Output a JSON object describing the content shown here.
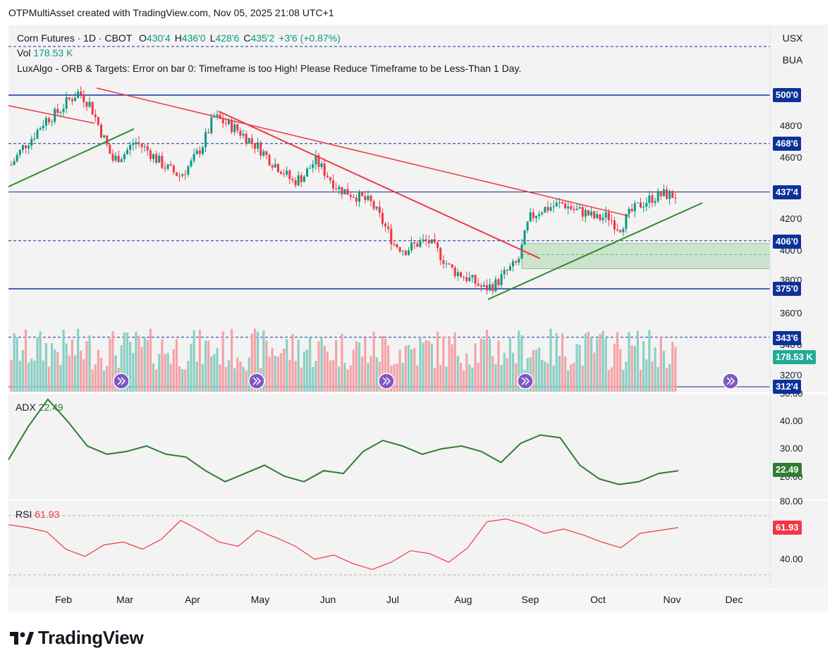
{
  "caption": "OTPMultiAsset created with TradingView.com, Nov 05, 2025 21:08 UTC+1",
  "brand": "TradingView",
  "legend": {
    "symbol": "Corn Futures · 1D · CBOT",
    "ohlc": [
      {
        "k": "O",
        "v": "430'4"
      },
      {
        "k": "H",
        "v": "436'0"
      },
      {
        "k": "L",
        "v": "428'6"
      },
      {
        "k": "C",
        "v": "435'2"
      },
      {
        "k": "",
        "v": "+3'6 (+0.87%)"
      }
    ],
    "vol_label": "Vol",
    "vol_value": "178.53 K",
    "indicator_msg": "LuxAlgo - ORB & Targets: Error on bar 0: Timeframe is too High! Please Reduce Timeframe to be Less-Than 1 Day."
  },
  "side_buttons": [
    "USX",
    "BUA"
  ],
  "price_axis": {
    "labels": [
      "480'0",
      "460'0",
      "420'0",
      "400'0",
      "380'0",
      "360'0",
      "340'0",
      "320'0"
    ],
    "pills": [
      {
        "text": "500'0",
        "color": "#0c3299"
      },
      {
        "text": "468'6",
        "color": "#0c3299"
      },
      {
        "text": "437'4",
        "color": "#0c3299"
      },
      {
        "text": "406'0",
        "color": "#0c3299"
      },
      {
        "text": "375'0",
        "color": "#0c3299"
      },
      {
        "text": "343'6",
        "color": "#0c3299"
      },
      {
        "text": "178.53 K",
        "color": "#22ab94"
      },
      {
        "text": "312'4",
        "color": "#0c3299"
      }
    ]
  },
  "adx": {
    "label": "ADX",
    "value": "22.49",
    "axis": [
      "50.00",
      "40.00",
      "30.00",
      "20.00"
    ],
    "color": "#2e7d32"
  },
  "rsi": {
    "label": "RSI",
    "value": "61.93",
    "axis": [
      "80.00",
      "40.00"
    ],
    "color": "#f23645"
  },
  "x_axis": [
    "Feb",
    "Mar",
    "Apr",
    "May",
    "Jun",
    "Jul",
    "Aug",
    "Sep",
    "Oct",
    "Nov",
    "Dec"
  ],
  "colors": {
    "up": "#089981",
    "down": "#f23645",
    "trend_red": "#f23645",
    "trend_green": "#2e8b2e",
    "level": "#0c3299"
  },
  "chart_data": {
    "type": "candlestick",
    "title": "Corn Futures · 1D · CBOT",
    "ylim": [
      305,
      515
    ],
    "levels": {
      "solid": [
        500,
        437.5,
        375
      ],
      "dashed": [
        468.75,
        406,
        343.75
      ]
    },
    "zone": [
      388,
      406
    ],
    "weekly_closes": [
      455,
      466,
      474,
      484,
      488,
      496,
      502,
      494,
      476,
      458,
      462,
      470,
      465,
      458,
      452,
      448,
      456,
      468,
      486,
      482,
      478,
      472,
      466,
      458,
      452,
      444,
      448,
      458,
      449,
      440,
      437,
      434,
      430,
      418,
      404,
      400,
      404,
      406,
      398,
      388,
      384,
      380,
      375,
      378,
      386,
      392,
      420,
      426,
      428,
      430,
      426,
      424,
      420,
      422,
      414,
      424,
      430,
      434,
      436,
      435
    ],
    "adx": [
      26,
      38,
      48,
      40,
      31,
      28,
      29,
      31,
      28,
      27,
      22,
      18,
      21,
      24,
      20,
      18,
      22,
      21,
      29,
      33,
      31,
      28,
      30,
      31,
      29,
      25,
      32,
      35,
      34,
      24,
      19,
      17,
      18,
      21,
      22
    ],
    "rsi": [
      64,
      62,
      59,
      47,
      42,
      50,
      52,
      47,
      54,
      67,
      60,
      52,
      49,
      60,
      55,
      49,
      40,
      43,
      37,
      33,
      38,
      46,
      44,
      38,
      48,
      66,
      68,
      64,
      58,
      61,
      57,
      52,
      48,
      58,
      60,
      62
    ]
  }
}
